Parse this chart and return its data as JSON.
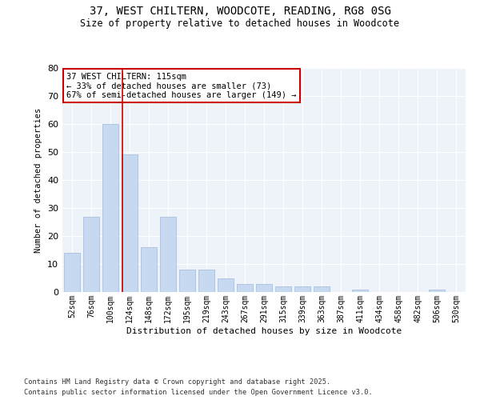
{
  "title_line1": "37, WEST CHILTERN, WOODCOTE, READING, RG8 0SG",
  "title_line2": "Size of property relative to detached houses in Woodcote",
  "xlabel": "Distribution of detached houses by size in Woodcote",
  "ylabel": "Number of detached properties",
  "bar_labels": [
    "52sqm",
    "76sqm",
    "100sqm",
    "124sqm",
    "148sqm",
    "172sqm",
    "195sqm",
    "219sqm",
    "243sqm",
    "267sqm",
    "291sqm",
    "315sqm",
    "339sqm",
    "363sqm",
    "387sqm",
    "411sqm",
    "434sqm",
    "458sqm",
    "482sqm",
    "506sqm",
    "530sqm"
  ],
  "bar_values": [
    14,
    27,
    60,
    49,
    16,
    27,
    8,
    8,
    5,
    3,
    3,
    2,
    2,
    2,
    0,
    1,
    0,
    0,
    0,
    1,
    0
  ],
  "bar_color": "#c6d9f0",
  "bar_edge_color": "#a0b8d8",
  "bar_width": 0.8,
  "vline_color": "#cc0000",
  "ylim": [
    0,
    80
  ],
  "yticks": [
    0,
    10,
    20,
    30,
    40,
    50,
    60,
    70,
    80
  ],
  "annotation_text": "37 WEST CHILTERN: 115sqm\n← 33% of detached houses are smaller (73)\n67% of semi-detached houses are larger (149) →",
  "annotation_box_color": "#ffffff",
  "annotation_box_edge": "#cc0000",
  "footer_line1": "Contains HM Land Registry data © Crown copyright and database right 2025.",
  "footer_line2": "Contains public sector information licensed under the Open Government Licence v3.0.",
  "background_color": "#eef3fa",
  "grid_color": "#ffffff",
  "fig_bg_color": "#ffffff"
}
